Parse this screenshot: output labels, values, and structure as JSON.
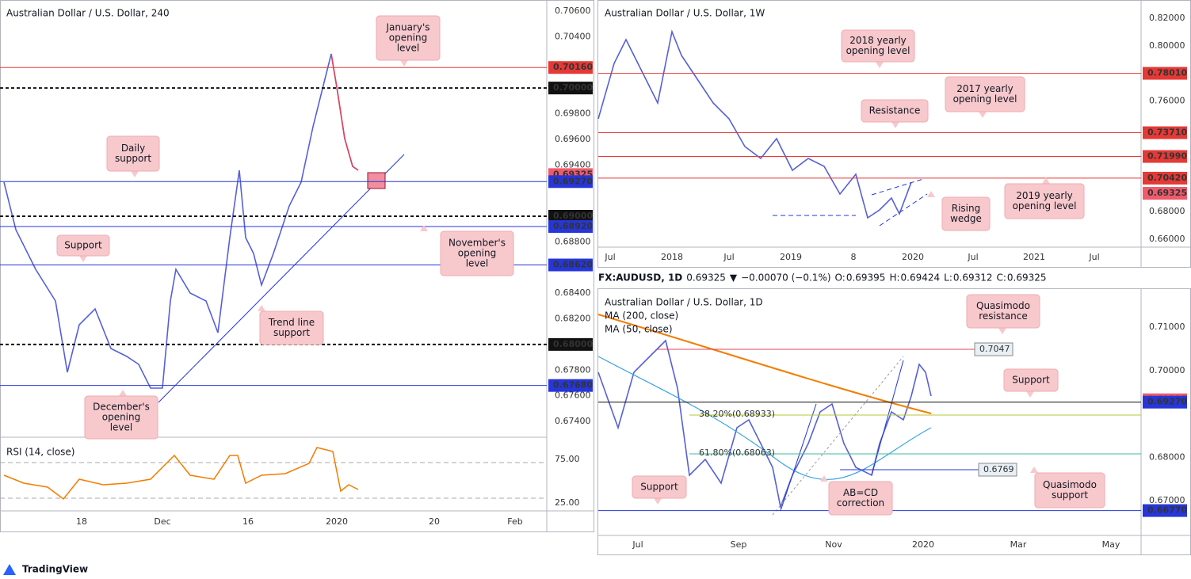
{
  "left_chart": {
    "title": "Australian Dollar / U.S. Dollar, 240",
    "price_ticks": [
      "0.70600",
      "0.70400",
      "0.69800",
      "0.69600",
      "0.69400",
      "0.68800",
      "0.68400",
      "0.68200",
      "0.67800",
      "0.67600",
      "0.67400"
    ],
    "levels": [
      "0.70160",
      "0.70000",
      "0.69325",
      "0.69270",
      "0.69000",
      "0.68920",
      "0.68620",
      "0.68000",
      "0.67680"
    ],
    "dates": [
      "18",
      "Dec",
      "16",
      "2020",
      "20",
      "Feb"
    ],
    "rsi": {
      "title": "RSI (14, close)",
      "ticks": [
        "75.00",
        "25.00"
      ]
    },
    "annotations": [
      [
        "January's",
        "opening",
        "level"
      ],
      [
        "Daily",
        "support"
      ],
      [
        "Support"
      ],
      [
        "November's",
        "opening",
        "level"
      ],
      [
        "Trend line",
        "support"
      ],
      [
        "December's",
        "opening",
        "level"
      ]
    ]
  },
  "weekly_chart": {
    "title": "Australian Dollar / U.S. Dollar, 1W",
    "price_ticks": [
      "0.82000",
      "0.80000",
      "0.76000",
      "0.68000",
      "0.66000"
    ],
    "levels": [
      "0.78010",
      "0.73710",
      "0.71990",
      "0.70420",
      "0.69325"
    ],
    "dates": [
      "Jul",
      "2018",
      "Jul",
      "2019",
      "8",
      "2020",
      "Jul",
      "2021",
      "Jul"
    ],
    "annotations": [
      [
        "2018 yearly",
        "opening level"
      ],
      [
        "2017 yearly",
        "opening level"
      ],
      [
        "Resistance"
      ],
      [
        "2019 yearly",
        "opening level"
      ],
      [
        "Rising",
        "wedge"
      ]
    ]
  },
  "quote_header": {
    "symbol": "FX:AUDUSD, 1D",
    "price": "0.69325",
    "arrow": "▼",
    "change": "−0.00070 (−0.1%)",
    "ohlc": [
      [
        "O:",
        "0.69395"
      ],
      [
        "H:",
        "0.69424"
      ],
      [
        "L:",
        "0.69312"
      ],
      [
        "C:",
        "0.69325"
      ]
    ]
  },
  "daily_chart": {
    "title": "Australian Dollar / U.S. Dollar, 1D",
    "indicators": [
      "MA (200, close)",
      "MA (50, close)"
    ],
    "price_ticks": [
      "0.71000",
      "0.70000",
      "0.68000",
      "0.67000"
    ],
    "levels": [
      "0.69325",
      "0.69270",
      "0.66770"
    ],
    "inline_labels": [
      "0.7047",
      "0.6769"
    ],
    "fib_labels": [
      "38.20%(0.68933)",
      "61.80%(0.68063)"
    ],
    "dates": [
      "Jul",
      "Sep",
      "Nov",
      "2020",
      "Mar",
      "May"
    ],
    "annotations": [
      [
        "Quasimodo",
        "resistance"
      ],
      [
        "Support"
      ],
      [
        "Support"
      ],
      [
        "AB=CD",
        "correction"
      ],
      [
        "Quasimodo",
        "support"
      ]
    ]
  },
  "footer": {
    "brand": "TradingView"
  }
}
